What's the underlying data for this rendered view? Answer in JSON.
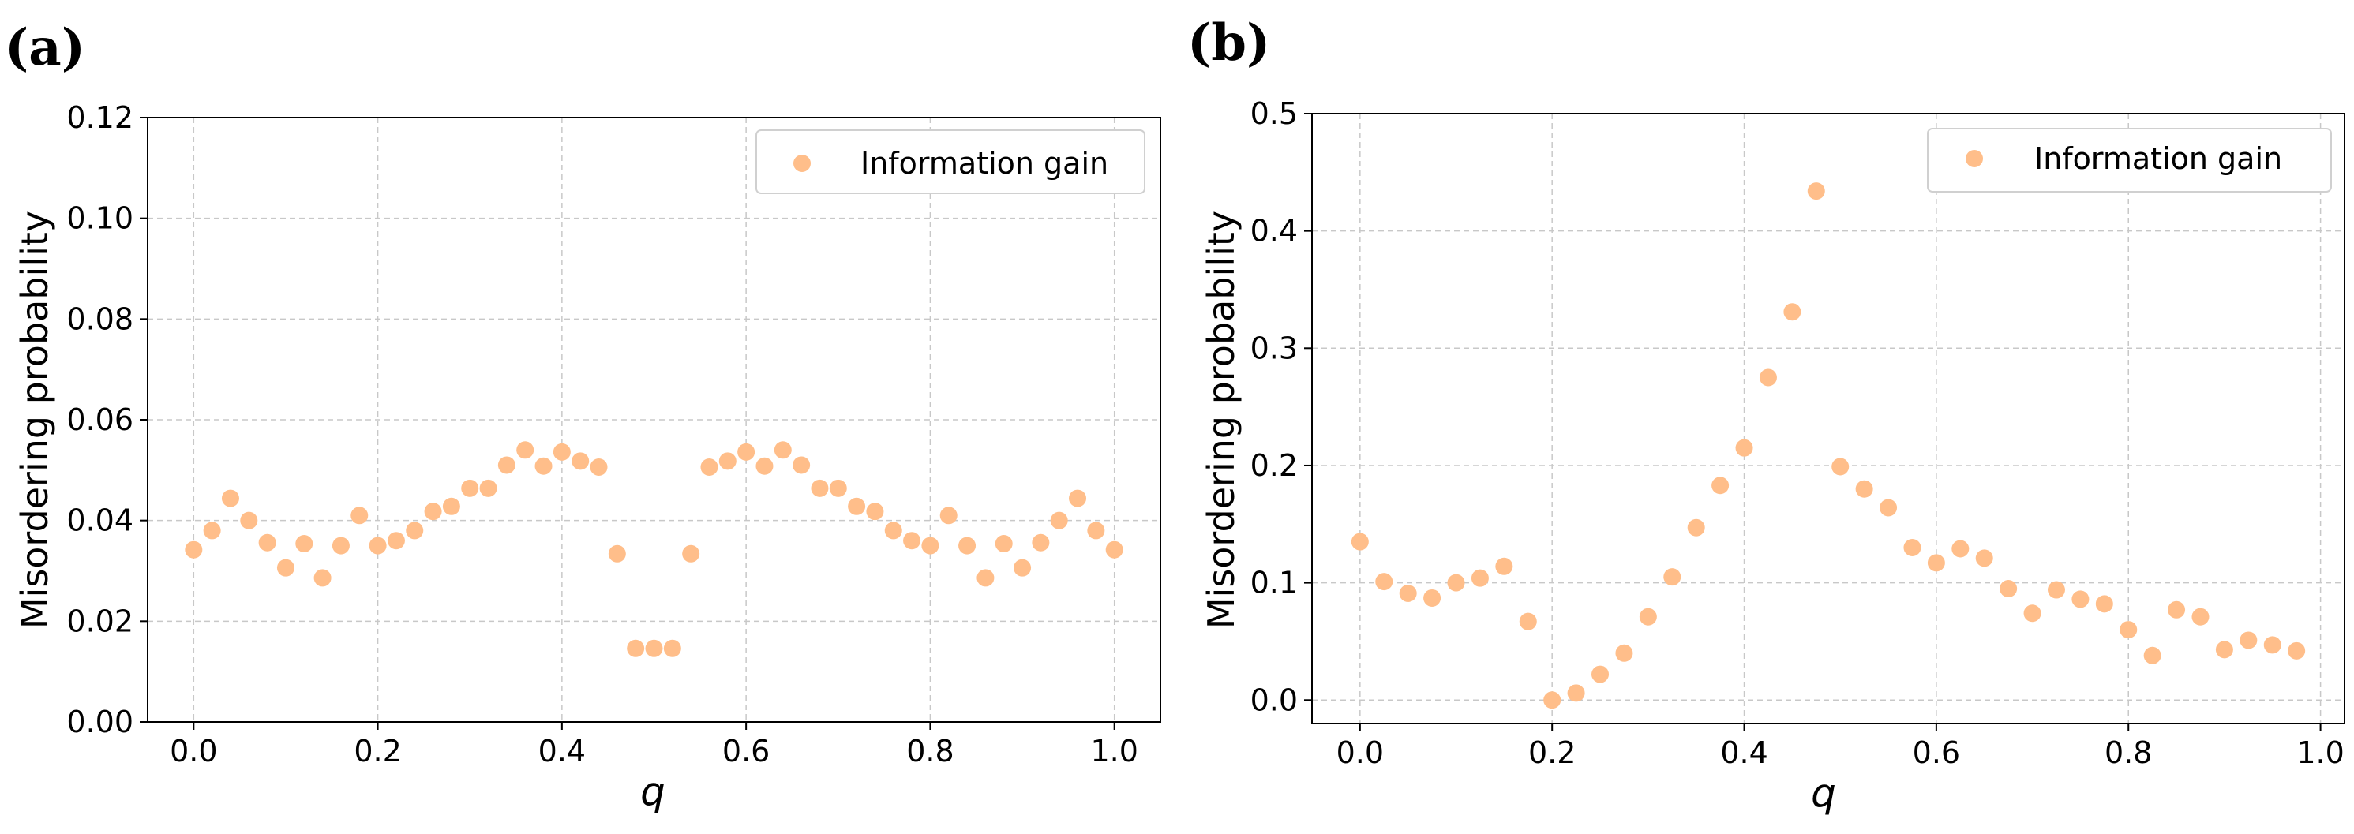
{
  "chart_data": [
    {
      "type": "scatter",
      "panel_label": "(a)",
      "xlabel": "q",
      "ylabel": "Misordering probability",
      "xlim": [
        -0.05,
        1.05
      ],
      "ylim": [
        0,
        0.12
      ],
      "xticks": [
        0.0,
        0.2,
        0.4,
        0.6,
        0.8,
        1.0
      ],
      "xtick_labels": [
        "0.0",
        "0.2",
        "0.4",
        "0.6",
        "0.8",
        "1.0"
      ],
      "yticks": [
        0,
        0.02,
        0.04,
        0.06,
        0.08,
        0.1,
        0.12
      ],
      "ytick_labels": [
        "0.00",
        "0.02",
        "0.04",
        "0.06",
        "0.08",
        "0.10",
        "0.12"
      ],
      "grid": true,
      "legend_position": "top-right",
      "series": [
        {
          "name": "Information gain",
          "color": "#FFBE8A",
          "x": [
            0.0,
            0.02,
            0.04,
            0.06,
            0.08,
            0.1,
            0.12,
            0.14,
            0.16,
            0.18,
            0.2,
            0.22,
            0.24,
            0.26,
            0.28,
            0.3,
            0.32,
            0.34,
            0.36,
            0.38,
            0.4,
            0.42,
            0.44,
            0.46,
            0.48,
            0.5,
            0.52,
            0.54,
            0.56,
            0.58,
            0.6,
            0.62,
            0.64,
            0.66,
            0.68,
            0.7,
            0.72,
            0.74,
            0.76,
            0.78,
            0.8,
            0.82,
            0.84,
            0.86,
            0.88,
            0.9,
            0.92,
            0.94,
            0.96,
            0.98,
            1.0
          ],
          "y": [
            0.0342,
            0.038,
            0.0444,
            0.04,
            0.0356,
            0.0306,
            0.0354,
            0.0286,
            0.035,
            0.041,
            0.035,
            0.036,
            0.038,
            0.0418,
            0.0428,
            0.0464,
            0.0464,
            0.051,
            0.054,
            0.0508,
            0.0536,
            0.0518,
            0.0506,
            0.0334,
            0.0146,
            0.0146,
            0.0146,
            0.0334,
            0.0506,
            0.0518,
            0.0536,
            0.0508,
            0.054,
            0.051,
            0.0464,
            0.0464,
            0.0428,
            0.0418,
            0.038,
            0.036,
            0.035,
            0.041,
            0.035,
            0.0286,
            0.0354,
            0.0306,
            0.0356,
            0.04,
            0.0444,
            0.038,
            0.0342
          ]
        }
      ]
    },
    {
      "type": "scatter",
      "panel_label": "(b)",
      "xlabel": "q",
      "ylabel": "Misordering probability",
      "xlim": [
        -0.05,
        1.025
      ],
      "ylim": [
        -0.02,
        0.5
      ],
      "xticks": [
        0.0,
        0.2,
        0.4,
        0.6,
        0.8,
        1.0
      ],
      "xtick_labels": [
        "0.0",
        "0.2",
        "0.4",
        "0.6",
        "0.8",
        "1.0"
      ],
      "yticks": [
        0.0,
        0.1,
        0.2,
        0.3,
        0.4,
        0.5
      ],
      "ytick_labels": [
        "0.0",
        "0.1",
        "0.2",
        "0.3",
        "0.4",
        "0.5"
      ],
      "grid": true,
      "legend_position": "top-right",
      "series": [
        {
          "name": "Information gain",
          "color": "#FFBE8A",
          "x": [
            0.0,
            0.025,
            0.05,
            0.075,
            0.1,
            0.125,
            0.15,
            0.175,
            0.2,
            0.225,
            0.25,
            0.275,
            0.3,
            0.325,
            0.35,
            0.375,
            0.4,
            0.425,
            0.45,
            0.475,
            0.5,
            0.525,
            0.55,
            0.575,
            0.6,
            0.625,
            0.65,
            0.675,
            0.7,
            0.725,
            0.75,
            0.775,
            0.8,
            0.825,
            0.85,
            0.875,
            0.9,
            0.925,
            0.95,
            0.975
          ],
          "y": [
            0.135,
            0.101,
            0.091,
            0.087,
            0.1,
            0.104,
            0.114,
            0.067,
            0.0,
            0.006,
            0.022,
            0.04,
            0.071,
            0.105,
            0.147,
            0.183,
            0.215,
            0.275,
            0.331,
            0.434,
            0.199,
            0.18,
            0.164,
            0.13,
            0.117,
            0.129,
            0.121,
            0.095,
            0.074,
            0.094,
            0.086,
            0.082,
            0.06,
            0.038,
            0.077,
            0.071,
            0.043,
            0.051,
            0.047,
            0.042
          ]
        }
      ]
    }
  ]
}
